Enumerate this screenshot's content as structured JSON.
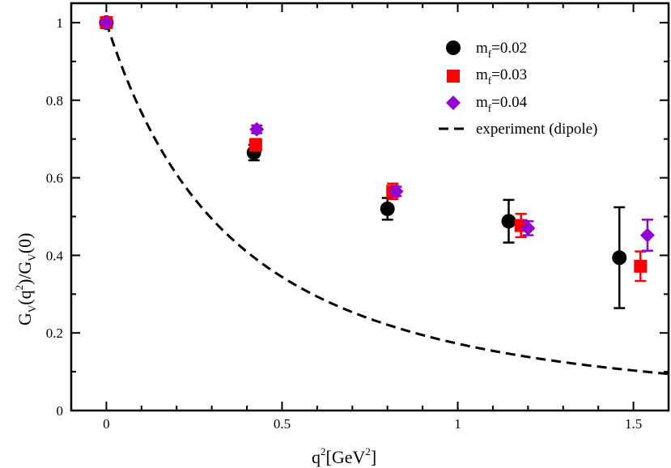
{
  "chart_data": {
    "type": "scatter",
    "xlabel": {
      "base": "q",
      "sup": "2",
      "unit_open": "[GeV",
      "unit_sup": "2",
      "unit_close": "]"
    },
    "ylabel": {
      "p1": "G",
      "s1": "V",
      "p2": "(q",
      "s2": "2",
      "p3": ")/G",
      "s3": "V",
      "p4": "(0)"
    },
    "xlim": [
      -0.1,
      1.6
    ],
    "ylim": [
      0,
      1.05
    ],
    "xticks": [
      0,
      0.5,
      1,
      1.5
    ],
    "xtick_labels": [
      "0",
      "0.5",
      "1",
      "1.5"
    ],
    "yticks": [
      0,
      0.2,
      0.4,
      0.6,
      0.8,
      1.0
    ],
    "ytick_labels": [
      "0",
      "0.2",
      "0.4",
      "0.6",
      "0.8",
      "1"
    ],
    "grid": false,
    "legend_position": "top-right",
    "series": [
      {
        "name": "m_f=0.02",
        "label_main": "m",
        "label_sub": "f",
        "label_value": "=0.02",
        "marker": "circle",
        "color": "#000000",
        "points": [
          {
            "x": 0.0,
            "y": 1.0,
            "err": 0.0
          },
          {
            "x": 0.42,
            "y": 0.665,
            "err": 0.02
          },
          {
            "x": 0.8,
            "y": 0.52,
            "err": 0.028
          },
          {
            "x": 1.145,
            "y": 0.488,
            "err": 0.055
          },
          {
            "x": 1.46,
            "y": 0.394,
            "err": 0.13
          }
        ]
      },
      {
        "name": "m_f=0.03",
        "label_main": "m",
        "label_sub": "f",
        "label_value": "=0.03",
        "marker": "square",
        "color": "#ff0000",
        "points": [
          {
            "x": 0.0,
            "y": 1.0,
            "err": 0.0
          },
          {
            "x": 0.425,
            "y": 0.685,
            "err": 0.015
          },
          {
            "x": 0.815,
            "y": 0.565,
            "err": 0.02
          },
          {
            "x": 1.18,
            "y": 0.477,
            "err": 0.03
          },
          {
            "x": 1.52,
            "y": 0.372,
            "err": 0.038
          }
        ]
      },
      {
        "name": "m_f=0.04",
        "label_main": "m",
        "label_sub": "f",
        "label_value": "=0.04",
        "marker": "diamond",
        "color": "#9400d3",
        "points": [
          {
            "x": 0.0,
            "y": 1.0,
            "err": 0.0
          },
          {
            "x": 0.428,
            "y": 0.725,
            "err": 0.01
          },
          {
            "x": 0.825,
            "y": 0.565,
            "err": 0.012
          },
          {
            "x": 1.2,
            "y": 0.47,
            "err": 0.018
          },
          {
            "x": 1.54,
            "y": 0.452,
            "err": 0.04
          }
        ]
      }
    ],
    "curve": {
      "name": "experiment (dipole)",
      "style": "dashed",
      "color": "#000000",
      "formula": "1/(1+q2/0.71)^2"
    }
  }
}
